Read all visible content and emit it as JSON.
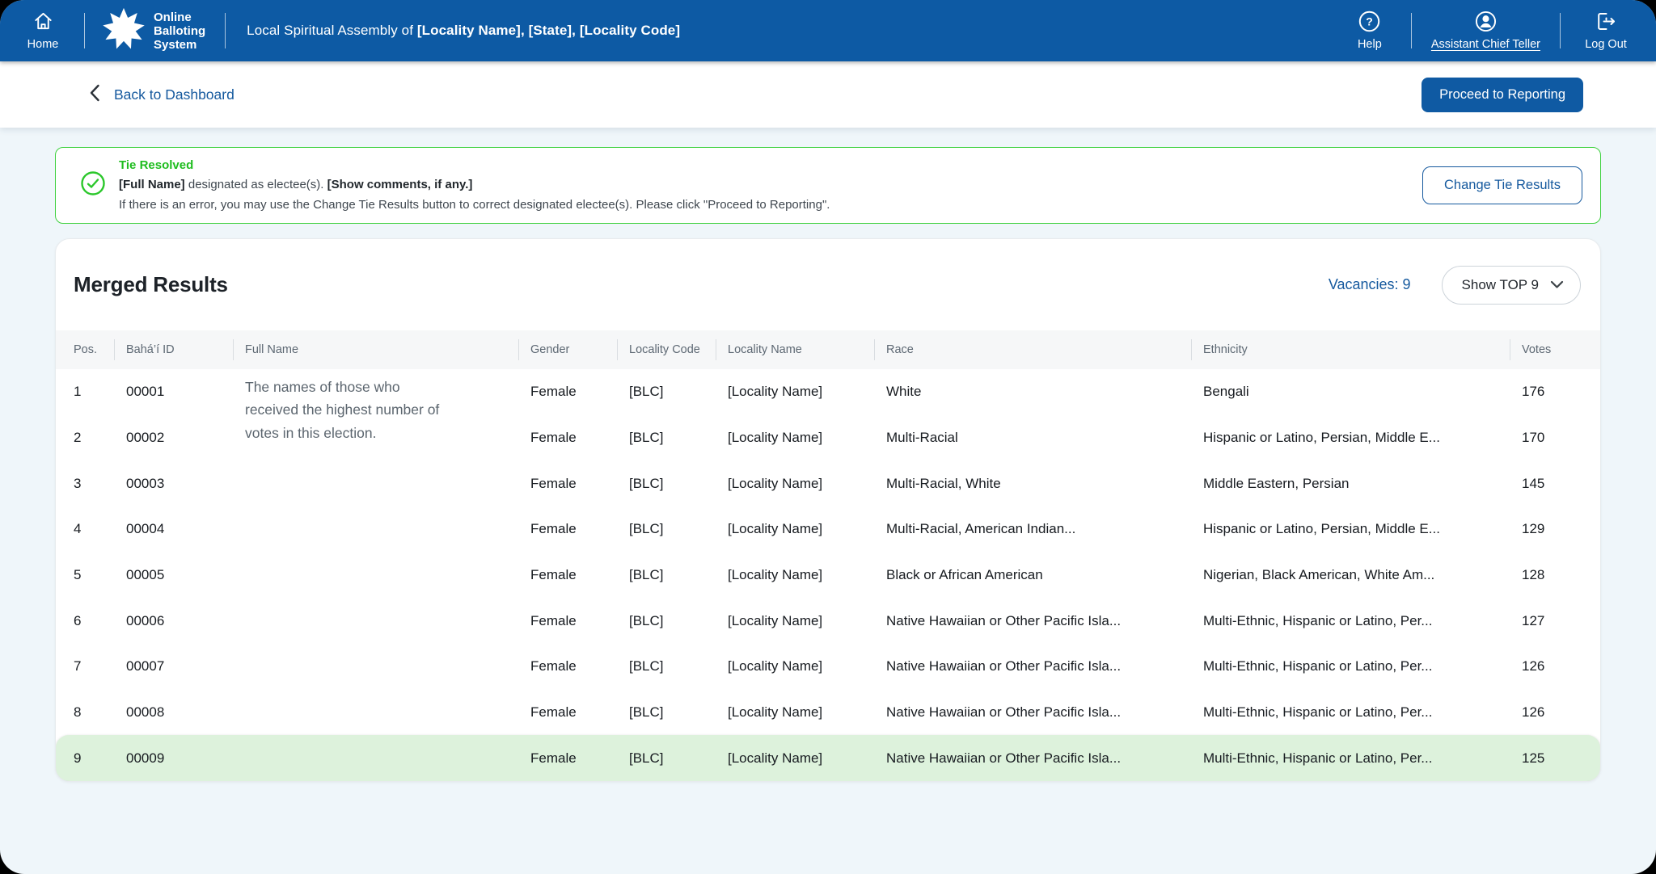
{
  "topbar": {
    "home_label": "Home",
    "brand_lines": [
      "Online",
      "Balloting",
      "System"
    ],
    "title_prefix": "Local Spiritual Assembly of ",
    "title_bold": "[Locality Name], [State], [Locality Code]",
    "help_label": "Help",
    "user_label": "Assistant Chief Teller",
    "logout_label": "Log Out"
  },
  "subheader": {
    "back_label": "Back to Dashboard",
    "proceed_label": "Proceed to Reporting"
  },
  "alert": {
    "title": "Tie Resolved",
    "electee_bold": "[Full Name]",
    "line1_mid": " designated as electee(s). ",
    "comments_bold": "[Show comments, if any.]",
    "line2": "If there is an error, you may use the Change Tie Results button to correct designated electee(s). Please click \"Proceed to Reporting\".",
    "button_label": "Change Tie Results"
  },
  "results": {
    "title": "Merged Results",
    "vacancies_label": "Vacancies: 9",
    "show_top_label": "Show TOP 9",
    "note": "The names of those who\nreceived the highest number of\nvotes in this election.",
    "columns": [
      "Pos.",
      "Bahá’í ID",
      "Full Name",
      "Gender",
      "Locality Code",
      "Locality Name",
      "Race",
      "Ethnicity",
      "Votes"
    ],
    "rows": [
      {
        "pos": "1",
        "id": "00001",
        "full_name": "",
        "gender": "Female",
        "locality_code": "[BLC]",
        "locality_name": "[Locality Name]",
        "race": "White",
        "ethnicity": "Bengali",
        "votes": "176",
        "highlighted": false
      },
      {
        "pos": "2",
        "id": "00002",
        "full_name": "",
        "gender": "Female",
        "locality_code": "[BLC]",
        "locality_name": "[Locality Name]",
        "race": "Multi-Racial",
        "ethnicity": "Hispanic or Latino, Persian, Middle E...",
        "votes": "170",
        "highlighted": false
      },
      {
        "pos": "3",
        "id": "00003",
        "full_name": "",
        "gender": "Female",
        "locality_code": "[BLC]",
        "locality_name": "[Locality Name]",
        "race": "Multi-Racial, White",
        "ethnicity": "Middle Eastern, Persian",
        "votes": "145",
        "highlighted": false
      },
      {
        "pos": "4",
        "id": "00004",
        "full_name": "",
        "gender": "Female",
        "locality_code": "[BLC]",
        "locality_name": "[Locality Name]",
        "race": "Multi-Racial, American Indian...",
        "ethnicity": "Hispanic or Latino, Persian, Middle E...",
        "votes": "129",
        "highlighted": false
      },
      {
        "pos": "5",
        "id": "00005",
        "full_name": "",
        "gender": "Female",
        "locality_code": "[BLC]",
        "locality_name": "[Locality Name]",
        "race": "Black or African American",
        "ethnicity": "Nigerian, Black American, White Am...",
        "votes": "128",
        "highlighted": false
      },
      {
        "pos": "6",
        "id": "00006",
        "full_name": "",
        "gender": "Female",
        "locality_code": "[BLC]",
        "locality_name": "[Locality Name]",
        "race": "Native Hawaiian or Other Pacific Isla...",
        "ethnicity": "Multi-Ethnic, Hispanic or Latino, Per...",
        "votes": "127",
        "highlighted": false
      },
      {
        "pos": "7",
        "id": "00007",
        "full_name": "",
        "gender": "Female",
        "locality_code": "[BLC]",
        "locality_name": "[Locality Name]",
        "race": "Native Hawaiian or Other Pacific Isla...",
        "ethnicity": "Multi-Ethnic, Hispanic or Latino, Per...",
        "votes": "126",
        "highlighted": false
      },
      {
        "pos": "8",
        "id": "00008",
        "full_name": "",
        "gender": "Female",
        "locality_code": "[BLC]",
        "locality_name": "[Locality Name]",
        "race": "Native Hawaiian or Other Pacific Isla...",
        "ethnicity": "Multi-Ethnic, Hispanic or Latino, Per...",
        "votes": "126",
        "highlighted": false
      },
      {
        "pos": "9",
        "id": "00009",
        "full_name": "",
        "gender": "Female",
        "locality_code": "[BLC]",
        "locality_name": "[Locality Name]",
        "race": "Native Hawaiian or Other Pacific Isla...",
        "ethnicity": "Multi-Ethnic, Hispanic or Latino, Per...",
        "votes": "125",
        "highlighted": true
      }
    ]
  },
  "colors": {
    "primary_blue": "#0d5aa4",
    "link_blue": "#15599e",
    "alert_green": "#3ed13e",
    "alert_green_text": "#1fbd1f",
    "highlight_row_green": "#ddf2dc",
    "page_background": "#eff6fa"
  }
}
